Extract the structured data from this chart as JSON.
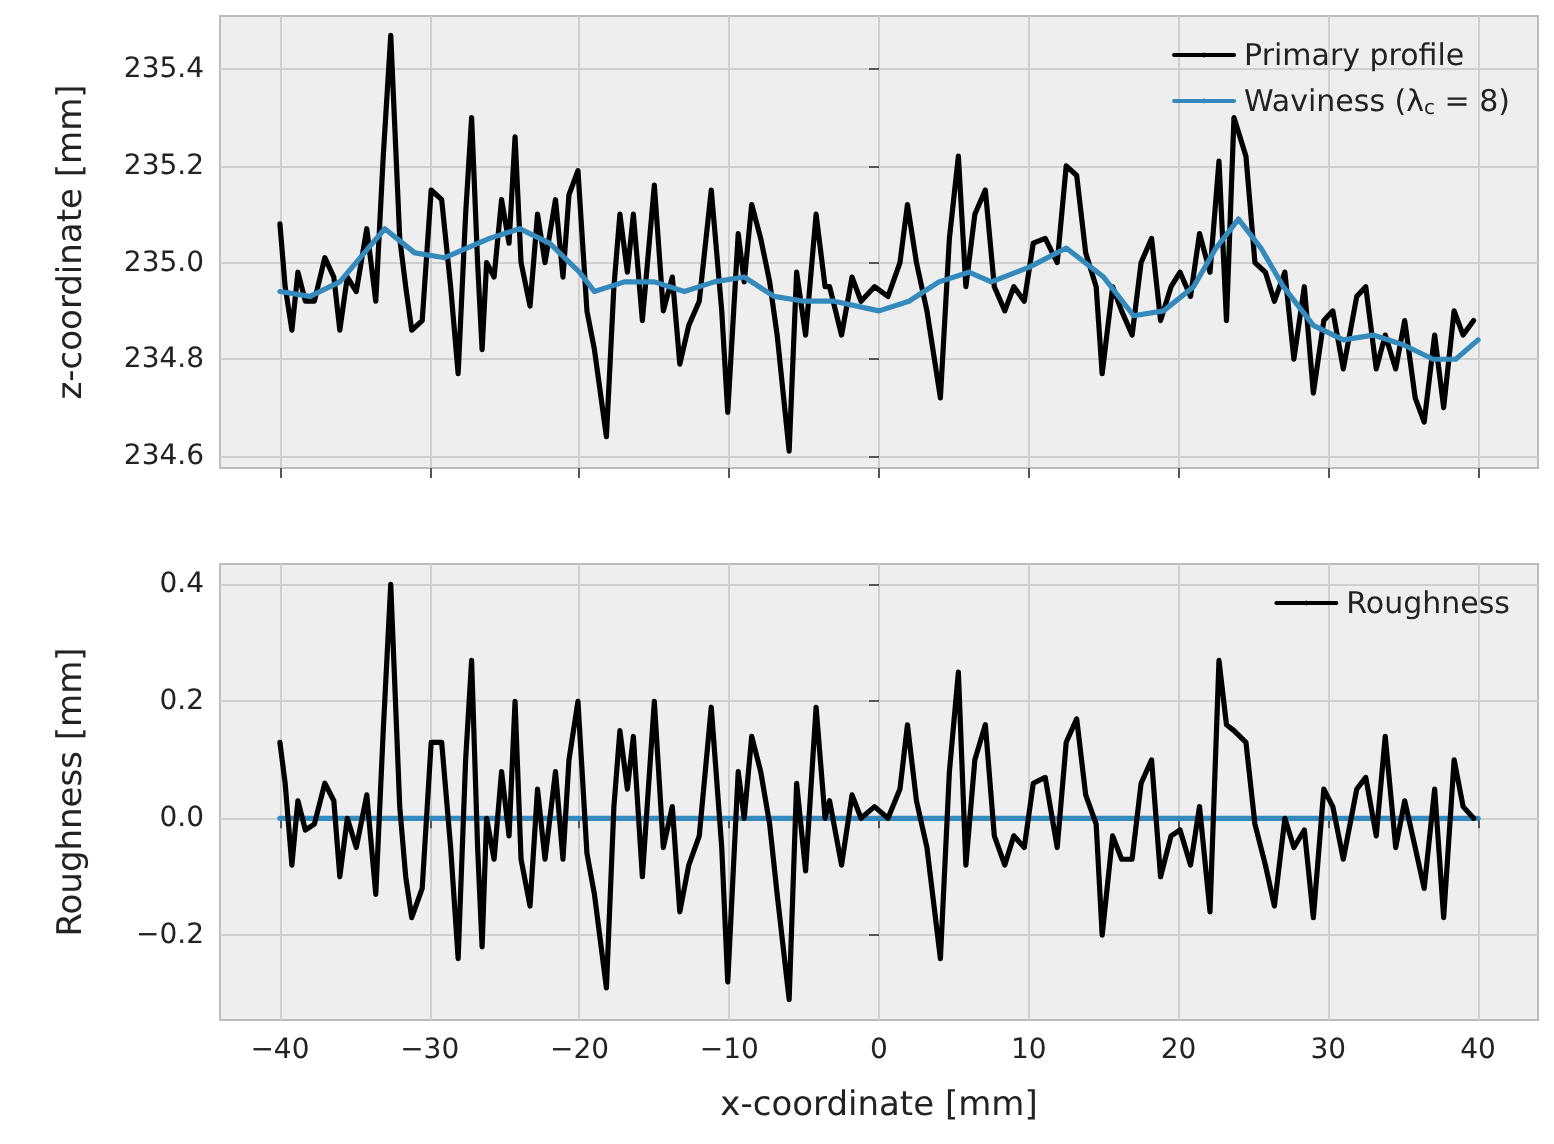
{
  "chart_data": [
    {
      "type": "line",
      "ylabel": "z-coordinate [mm]",
      "xlim": [
        -44,
        44
      ],
      "xticks": [
        -40,
        -30,
        -20,
        -10,
        0,
        10,
        20,
        30,
        40
      ],
      "ylim": [
        234.575,
        235.51
      ],
      "yticks": [
        234.6,
        234.8,
        {
          "value": 235,
          "label": "235.0"
        },
        235.2,
        235.4
      ],
      "tick_labels": "y",
      "grid": true,
      "legend": "top right",
      "series": [
        {
          "name": "Primary profile",
          "color": "#000000",
          "x": [
            -40,
            -39.65,
            -39.2,
            -38.8,
            -38.3,
            -37.7,
            -37.0,
            -36.4,
            -36.0,
            -35.5,
            -34.9,
            -34.2,
            -33.6,
            -33.1,
            -32.6,
            -32.0,
            -31.6,
            -31.2,
            -30.5,
            -29.9,
            -29.2,
            -28.6,
            -28.1,
            -27.6,
            -27.2,
            -26.8,
            -26.5,
            -26.2,
            -25.7,
            -25.2,
            -24.7,
            -24.3,
            -23.9,
            -23.3,
            -22.8,
            -22.3,
            -21.6,
            -21.1,
            -20.7,
            -20.1,
            -19.5,
            -19.0,
            -18.2,
            -17.7,
            -17.3,
            -16.8,
            -16.4,
            -15.8,
            -15.0,
            -14.4,
            -13.8,
            -13.3,
            -12.7,
            -12.0,
            -11.2,
            -10.5,
            -10.1,
            -9.4,
            -9.0,
            -8.5,
            -7.9,
            -7.3,
            -6.8,
            -6.0,
            -5.5,
            -4.9,
            -4.2,
            -3.6,
            -3.3,
            -2.5,
            -1.8,
            -1.2,
            -0.3,
            0.6,
            1.4,
            1.9,
            2.5,
            3.2,
            4.1,
            4.7,
            5.3,
            5.8,
            6.4,
            7.1,
            7.7,
            8.4,
            9.0,
            9.7,
            10.3,
            11.1,
            11.9,
            12.5,
            13.2,
            13.8,
            14.5,
            14.9,
            15.6,
            16.2,
            16.9,
            17.5,
            18.2,
            18.8,
            19.5,
            20.1,
            20.8,
            21.4,
            22.1,
            22.7,
            23.2,
            23.7,
            24.5,
            25.1,
            25.8,
            26.4,
            27.1,
            27.7,
            28.4,
            29.0,
            29.7,
            30.3,
            31.0,
            31.9,
            32.5,
            33.2,
            33.8,
            34.5,
            35.1,
            35.8,
            36.4,
            37.1,
            37.7,
            38.4,
            39.0,
            39.7
          ],
          "values": [
            235.08,
            234.95,
            234.86,
            234.98,
            234.92,
            234.92,
            235.01,
            234.97,
            234.86,
            234.97,
            234.94,
            235.07,
            234.92,
            235.22,
            235.47,
            235.05,
            234.95,
            234.86,
            234.88,
            235.15,
            235.13,
            234.95,
            234.77,
            235.1,
            235.3,
            235.0,
            234.82,
            235.0,
            234.97,
            235.13,
            235.04,
            235.26,
            235.0,
            234.91,
            235.1,
            235.0,
            235.13,
            234.97,
            235.14,
            235.19,
            234.9,
            234.82,
            234.64,
            234.95,
            235.1,
            234.98,
            235.1,
            234.88,
            235.16,
            234.9,
            234.97,
            234.79,
            234.87,
            234.92,
            235.15,
            234.9,
            234.69,
            235.06,
            234.96,
            235.12,
            235.05,
            234.96,
            234.85,
            234.61,
            234.98,
            234.85,
            235.1,
            234.95,
            234.95,
            234.85,
            234.97,
            234.92,
            234.95,
            234.93,
            235.0,
            235.12,
            235.0,
            234.9,
            234.72,
            235.05,
            235.22,
            234.95,
            235.1,
            235.15,
            234.95,
            234.9,
            234.95,
            234.92,
            235.04,
            235.05,
            235.0,
            235.2,
            235.18,
            235.02,
            234.95,
            234.77,
            234.95,
            234.9,
            234.85,
            235.0,
            235.05,
            234.88,
            234.95,
            234.98,
            234.93,
            235.06,
            234.98,
            235.21,
            234.88,
            235.3,
            235.22,
            235.0,
            234.98,
            234.92,
            234.98,
            234.8,
            234.95,
            234.73,
            234.88,
            234.9,
            234.78,
            234.93,
            234.95,
            234.78,
            234.85,
            234.78,
            234.88,
            234.72,
            234.67,
            234.85,
            234.7,
            234.9,
            234.85,
            234.88
          ]
        },
        {
          "name": "Waviness (λ$_{c}$ = 8)",
          "color": "#348abd",
          "x": [
            -40,
            -38,
            -36,
            -33,
            -31,
            -29,
            -26,
            -24,
            -22,
            -20,
            -19,
            -17,
            -15,
            -13,
            -11,
            -9,
            -7,
            -5,
            -3,
            0,
            2,
            4,
            6,
            7.5,
            10,
            12.5,
            15,
            17,
            19,
            21,
            22.5,
            24,
            25.5,
            27,
            29,
            31,
            33,
            35,
            37,
            38.5,
            40
          ],
          "values": [
            234.94,
            234.93,
            234.96,
            235.07,
            235.02,
            235.01,
            235.05,
            235.07,
            235.04,
            234.98,
            234.94,
            234.96,
            234.96,
            234.94,
            234.96,
            234.97,
            234.93,
            234.92,
            234.92,
            234.9,
            234.92,
            234.96,
            234.98,
            234.96,
            234.99,
            235.03,
            234.97,
            234.89,
            234.9,
            234.95,
            235.03,
            235.09,
            235.03,
            234.95,
            234.87,
            234.84,
            234.85,
            234.83,
            234.8,
            234.8,
            234.84
          ]
        }
      ]
    },
    {
      "type": "line",
      "xlabel": "x-coordinate [mm]",
      "ylabel": "Roughness [mm]",
      "xlim": [
        -44,
        44
      ],
      "xticks": [
        {
          "value": -40,
          "label": "−40"
        },
        {
          "value": -30,
          "label": "−30"
        },
        {
          "value": -20,
          "label": "−20"
        },
        {
          "value": -10,
          "label": "−10"
        },
        0,
        10,
        20,
        30,
        40
      ],
      "ylim": [
        -0.345,
        0.435
      ],
      "yticks": [
        {
          "value": -0.2,
          "label": "−0.2"
        },
        {
          "value": 0,
          "label": "0.0"
        },
        0.2,
        0.4
      ],
      "grid": true,
      "legend": "top right",
      "series": [
        {
          "name": "Roughness",
          "color": "#000000",
          "x": [
            -40,
            -39.65,
            -39.2,
            -38.8,
            -38.3,
            -37.7,
            -37.0,
            -36.4,
            -36.0,
            -35.5,
            -34.9,
            -34.2,
            -33.6,
            -33.1,
            -32.6,
            -32.0,
            -31.6,
            -31.2,
            -30.5,
            -29.9,
            -29.2,
            -28.6,
            -28.1,
            -27.6,
            -27.2,
            -26.8,
            -26.5,
            -26.2,
            -25.7,
            -25.2,
            -24.7,
            -24.3,
            -23.9,
            -23.3,
            -22.8,
            -22.3,
            -21.6,
            -21.1,
            -20.7,
            -20.1,
            -19.5,
            -19.0,
            -18.2,
            -17.7,
            -17.3,
            -16.8,
            -16.4,
            -15.8,
            -15.0,
            -14.4,
            -13.8,
            -13.3,
            -12.7,
            -12.0,
            -11.2,
            -10.5,
            -10.1,
            -9.4,
            -9.0,
            -8.5,
            -7.9,
            -7.3,
            -6.8,
            -6.0,
            -5.5,
            -4.9,
            -4.2,
            -3.6,
            -3.3,
            -2.5,
            -1.8,
            -1.2,
            -0.3,
            0.6,
            1.4,
            1.9,
            2.5,
            3.2,
            4.1,
            4.7,
            5.3,
            5.8,
            6.4,
            7.1,
            7.7,
            8.4,
            9.0,
            9.7,
            10.3,
            11.1,
            11.9,
            12.5,
            13.2,
            13.8,
            14.5,
            14.9,
            15.6,
            16.2,
            16.9,
            17.5,
            18.2,
            18.8,
            19.5,
            20.1,
            20.8,
            21.4,
            22.1,
            22.7,
            23.2,
            23.7,
            24.5,
            25.1,
            25.8,
            26.4,
            27.1,
            27.7,
            28.4,
            29.0,
            29.7,
            30.3,
            31.0,
            31.9,
            32.5,
            33.2,
            33.8,
            34.5,
            35.1,
            35.8,
            36.4,
            37.1,
            37.7,
            38.4,
            39.0,
            39.7
          ],
          "values": [
            0.13,
            0.06,
            -0.08,
            0.03,
            -0.02,
            -0.01,
            0.06,
            0.03,
            -0.1,
            0.0,
            -0.05,
            0.04,
            -0.13,
            0.15,
            0.4,
            0.02,
            -0.1,
            -0.17,
            -0.12,
            0.13,
            0.13,
            -0.05,
            -0.24,
            0.1,
            0.27,
            -0.05,
            -0.22,
            0.0,
            -0.07,
            0.08,
            -0.03,
            0.2,
            -0.07,
            -0.15,
            0.05,
            -0.07,
            0.08,
            -0.07,
            0.1,
            0.2,
            -0.06,
            -0.13,
            -0.29,
            0.02,
            0.15,
            0.05,
            0.14,
            -0.1,
            0.2,
            -0.05,
            0.02,
            -0.16,
            -0.08,
            -0.03,
            0.19,
            -0.05,
            -0.28,
            0.08,
            0.0,
            0.14,
            0.08,
            -0.01,
            -0.13,
            -0.31,
            0.06,
            -0.09,
            0.19,
            0.0,
            0.03,
            -0.08,
            0.04,
            0.0,
            0.02,
            0.0,
            0.05,
            0.16,
            0.03,
            -0.05,
            -0.24,
            0.08,
            0.25,
            -0.08,
            0.1,
            0.16,
            -0.03,
            -0.08,
            -0.03,
            -0.05,
            0.06,
            0.07,
            -0.05,
            0.13,
            0.17,
            0.04,
            -0.01,
            -0.2,
            -0.03,
            -0.07,
            -0.07,
            0.06,
            0.1,
            -0.1,
            -0.03,
            -0.02,
            -0.08,
            0.02,
            -0.16,
            0.27,
            0.16,
            0.15,
            0.13,
            -0.01,
            -0.08,
            -0.15,
            0.0,
            -0.05,
            -0.02,
            -0.17,
            0.05,
            0.02,
            -0.07,
            0.05,
            0.07,
            -0.03,
            0.14,
            -0.05,
            0.03,
            -0.05,
            -0.12,
            0.05,
            -0.17,
            0.1,
            0.02,
            0.0
          ]
        },
        {
          "color": "#348abd",
          "x": [
            -40,
            40
          ],
          "values": [
            0,
            0
          ]
        }
      ]
    }
  ]
}
